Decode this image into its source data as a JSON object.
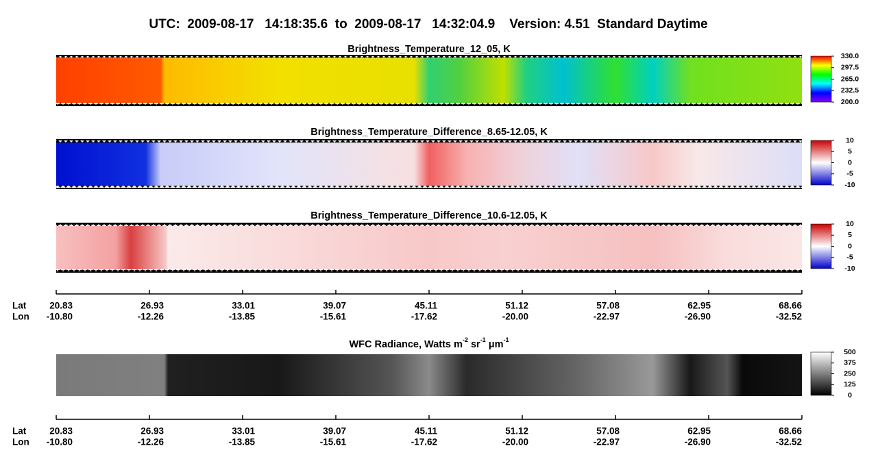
{
  "title": "UTC:  2009-08-17   14:18:35.6  to  2009-08-17   14:32:04.9    Version: 4.51  Standard Daytime",
  "chart_data": [
    {
      "type": "heatmap",
      "title": "Brightness_Temperature_12_05, K",
      "colors": [
        "#ff0000",
        "#ffff00",
        "#00ff00",
        "#00ffff",
        "#0000ff",
        "#8800ff"
      ],
      "clim": [
        200,
        330
      ],
      "cticks": [
        {
          "value": 330,
          "label": "330.0"
        },
        {
          "value": 297.5,
          "label": "297.5"
        },
        {
          "value": 265,
          "label": "265.0"
        },
        {
          "value": 232.5,
          "label": "232.5"
        },
        {
          "value": 200,
          "label": "200.0"
        }
      ]
    },
    {
      "type": "heatmap",
      "title": "Brightness_Temperature_Difference_8.65-12.05, K",
      "colors": [
        "#cc0000",
        "#ffffff",
        "#0000cc"
      ],
      "clim": [
        -10,
        10
      ],
      "cticks": [
        10,
        5,
        0,
        -5,
        -10
      ]
    },
    {
      "type": "heatmap",
      "title": "Brightness_Temperature_Difference_10.6-12.05, K",
      "colors": [
        "#cc0000",
        "#ffffff",
        "#0000cc"
      ],
      "clim": [
        -10,
        10
      ],
      "cticks": [
        10,
        5,
        0,
        -5,
        -10
      ]
    },
    {
      "type": "heatmap",
      "title_segments": [
        "WFC Radiance, Watts m",
        "-2",
        " sr",
        "-1",
        " μm",
        "-1"
      ],
      "colors": [
        "#ffffff",
        "#000000"
      ],
      "clim": [
        0,
        500
      ],
      "cticks": [
        500,
        375,
        250,
        125,
        0
      ]
    }
  ],
  "axis": {
    "row_labels": [
      "Lat",
      "Lon"
    ],
    "lat": [
      "20.83",
      "26.93",
      "33.01",
      "39.07",
      "45.11",
      "51.12",
      "57.08",
      "62.95",
      "68.66"
    ],
    "lon": [
      "-10.80",
      "-12.26",
      "-13.85",
      "-15.61",
      "-17.62",
      "-20.00",
      "-22.97",
      "-26.90",
      "-32.52"
    ]
  }
}
